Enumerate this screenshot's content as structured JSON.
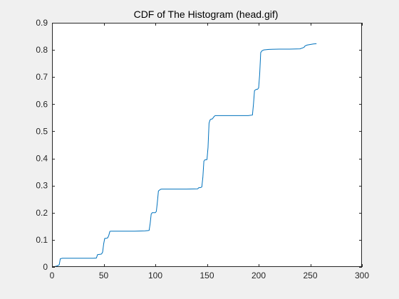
{
  "figure": {
    "background": "#f0f0f0",
    "axes_background": "#ffffff",
    "axis_color": "#262626"
  },
  "chart_data": {
    "type": "line",
    "title": "CDF of The Histogram (head.gif)",
    "xlabel": "",
    "ylabel": "",
    "xlim": [
      0,
      300
    ],
    "ylim": [
      0,
      0.9
    ],
    "xticks": [
      0,
      50,
      100,
      150,
      200,
      250,
      300
    ],
    "xtick_labels": [
      "0",
      "50",
      "100",
      "150",
      "200",
      "250",
      "300"
    ],
    "yticks": [
      0,
      0.1,
      0.2,
      0.3,
      0.4,
      0.5,
      0.6,
      0.7,
      0.8,
      0.9
    ],
    "ytick_labels": [
      "0",
      "0.1",
      "0.2",
      "0.3",
      "0.4",
      "0.5",
      "0.6",
      "0.7",
      "0.8",
      "0.9"
    ],
    "grid": false,
    "box": true,
    "series": [
      {
        "color": "#0072bd",
        "x": [
          0,
          3,
          5,
          7,
          8,
          10,
          20,
          30,
          40,
          43,
          44,
          45,
          47,
          48,
          49,
          50,
          51,
          53,
          54,
          55,
          56,
          57,
          60,
          70,
          80,
          90,
          93,
          94,
          95,
          96,
          97,
          98,
          100,
          101,
          102,
          103,
          104,
          105,
          106,
          110,
          120,
          130,
          141,
          142,
          144,
          145,
          146,
          147,
          148,
          149,
          150,
          151,
          152,
          153,
          154,
          155,
          156,
          157,
          158,
          160,
          170,
          180,
          190,
          194,
          195,
          196,
          197,
          198,
          199,
          200,
          201,
          202,
          203,
          204,
          205,
          210,
          220,
          230,
          240,
          243,
          244,
          245,
          247,
          250,
          253,
          256
        ],
        "y": [
          0.0,
          0.002,
          0.004,
          0.008,
          0.03,
          0.032,
          0.032,
          0.032,
          0.032,
          0.033,
          0.045,
          0.046,
          0.047,
          0.048,
          0.055,
          0.085,
          0.105,
          0.106,
          0.108,
          0.117,
          0.131,
          0.132,
          0.132,
          0.132,
          0.132,
          0.133,
          0.134,
          0.135,
          0.16,
          0.195,
          0.2,
          0.2,
          0.2,
          0.205,
          0.24,
          0.28,
          0.283,
          0.286,
          0.287,
          0.287,
          0.287,
          0.287,
          0.288,
          0.292,
          0.293,
          0.295,
          0.33,
          0.39,
          0.395,
          0.395,
          0.396,
          0.44,
          0.53,
          0.542,
          0.545,
          0.545,
          0.55,
          0.555,
          0.558,
          0.558,
          0.558,
          0.558,
          0.558,
          0.56,
          0.6,
          0.65,
          0.653,
          0.655,
          0.655,
          0.66,
          0.71,
          0.79,
          0.796,
          0.798,
          0.8,
          0.802,
          0.803,
          0.803,
          0.804,
          0.808,
          0.81,
          0.815,
          0.818,
          0.82,
          0.822,
          0.823
        ]
      }
    ]
  }
}
